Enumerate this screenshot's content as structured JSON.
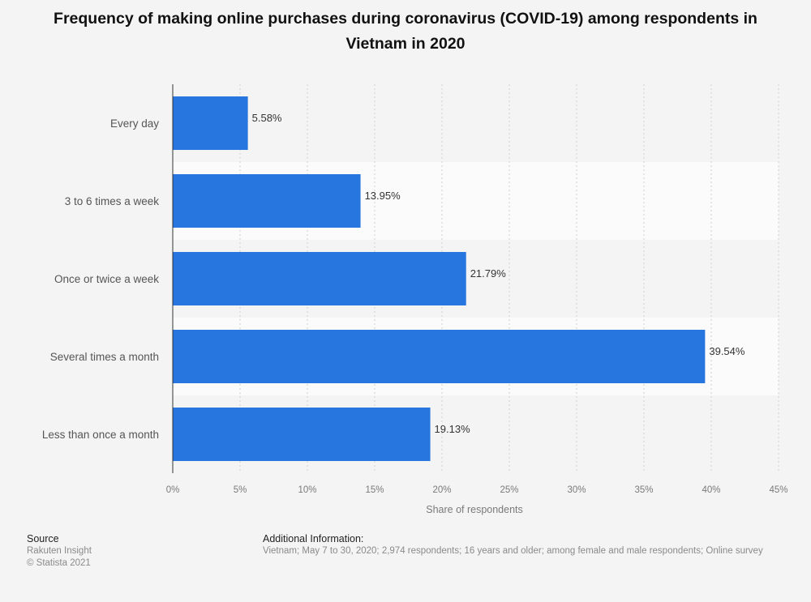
{
  "chart_data": {
    "type": "bar",
    "orientation": "horizontal",
    "title": "Frequency of making online purchases during coronavirus (COVID-19) among respondents in Vietnam in 2020",
    "categories": [
      "Every day",
      "3 to 6 times a week",
      "Once or twice a week",
      "Several times a month",
      "Less than once a month"
    ],
    "values": [
      5.58,
      13.95,
      21.79,
      39.54,
      19.13
    ],
    "value_labels": [
      "5.58%",
      "13.95%",
      "21.79%",
      "39.54%",
      "19.13%"
    ],
    "xlabel": "Share of respondents",
    "ylabel": "",
    "xlim": [
      0,
      45
    ],
    "xticks": [
      0,
      5,
      10,
      15,
      20,
      25,
      30,
      35,
      40,
      45
    ],
    "xtick_labels": [
      "0%",
      "5%",
      "10%",
      "15%",
      "20%",
      "25%",
      "30%",
      "35%",
      "40%",
      "45%"
    ],
    "grid": true,
    "legend": "none",
    "bar_color": "#2775de"
  },
  "footer": {
    "source_heading": "Source",
    "source_name": "Rakuten Insight",
    "copyright": "© Statista 2021",
    "info_heading": "Additional Information:",
    "info_text": "Vietnam; May 7 to 30, 2020; 2,974 respondents; 16 years and older; among female and male respondents; Online survey"
  }
}
